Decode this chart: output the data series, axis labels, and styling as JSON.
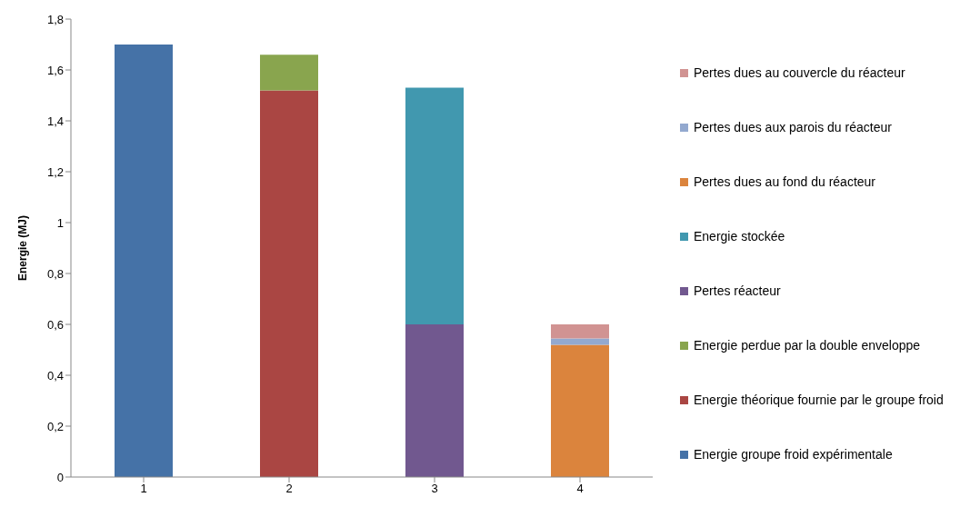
{
  "chart_data": {
    "type": "bar",
    "stacked": true,
    "ylabel": "Energie (MJ)",
    "categories": [
      "1",
      "2",
      "3",
      "4"
    ],
    "series": [
      {
        "name": "Energie groupe froid expérimentale",
        "color": "#4572a7",
        "values": [
          1.7,
          null,
          null,
          null
        ]
      },
      {
        "name": "Energie théorique fournie par le groupe froid",
        "color": "#aa4643",
        "values": [
          null,
          1.52,
          null,
          null
        ]
      },
      {
        "name": "Energie perdue par la double enveloppe",
        "color": "#89a54e",
        "values": [
          null,
          0.14,
          null,
          null
        ]
      },
      {
        "name": "Pertes réacteur",
        "color": "#71588f",
        "values": [
          null,
          null,
          0.6,
          null
        ]
      },
      {
        "name": "Energie stockée",
        "color": "#4198af",
        "values": [
          null,
          null,
          0.93,
          null
        ]
      },
      {
        "name": "Pertes dues au fond du réacteur",
        "color": "#db843d",
        "values": [
          null,
          null,
          null,
          0.52
        ]
      },
      {
        "name": "Pertes dues aux parois du réacteur",
        "color": "#93a9cf",
        "values": [
          null,
          null,
          null,
          0.025
        ]
      },
      {
        "name": "Pertes dues au couvercle du réacteur",
        "color": "#d19392",
        "values": [
          null,
          null,
          null,
          0.055
        ]
      }
    ],
    "ylim": [
      0,
      1.8
    ],
    "yticks": [
      0,
      {
        "value": 0.2,
        "label": "0,2"
      },
      {
        "value": 0.4,
        "label": "0,4"
      },
      {
        "value": 0.6,
        "label": "0,6"
      },
      {
        "value": 0.8,
        "label": "0,8"
      },
      1,
      {
        "value": 1.2,
        "label": "1,2"
      },
      {
        "value": 1.4,
        "label": "1,4"
      },
      {
        "value": 1.6,
        "label": "1,6"
      },
      {
        "value": 1.8,
        "label": "1,8"
      }
    ],
    "grid": false,
    "legend": "right"
  }
}
